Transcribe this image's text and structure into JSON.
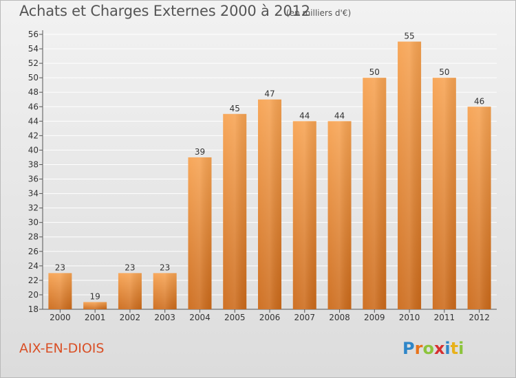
{
  "header": {
    "title": "Achats et Charges Externes 2000 à 2012",
    "subtitle": "(en milliers d'€)"
  },
  "footer": {
    "commune": "AIX-EN-DIOIS",
    "logo_text": "Proxiti"
  },
  "colors": {
    "bar_top": "#f7a352",
    "bar_bottom": "#cc6a1a",
    "title_text": "#555555",
    "commune_text": "#d94f25",
    "grid": "#ffffff"
  },
  "chart_data": {
    "type": "bar",
    "title": "Achats et Charges Externes 2000 à 2012",
    "subtitle": "(en milliers d'€)",
    "xlabel": "",
    "ylabel": "",
    "categories": [
      "2000",
      "2001",
      "2002",
      "2003",
      "2004",
      "2005",
      "2006",
      "2007",
      "2008",
      "2009",
      "2010",
      "2011",
      "2012"
    ],
    "values": [
      23,
      19,
      23,
      23,
      39,
      45,
      47,
      44,
      44,
      50,
      55,
      50,
      46
    ],
    "ylim": [
      18,
      56
    ],
    "yticks": [
      18,
      20,
      22,
      24,
      26,
      28,
      30,
      32,
      34,
      36,
      38,
      40,
      42,
      44,
      46,
      48,
      50,
      52,
      54,
      56
    ],
    "grid": true,
    "data_labels": true
  }
}
